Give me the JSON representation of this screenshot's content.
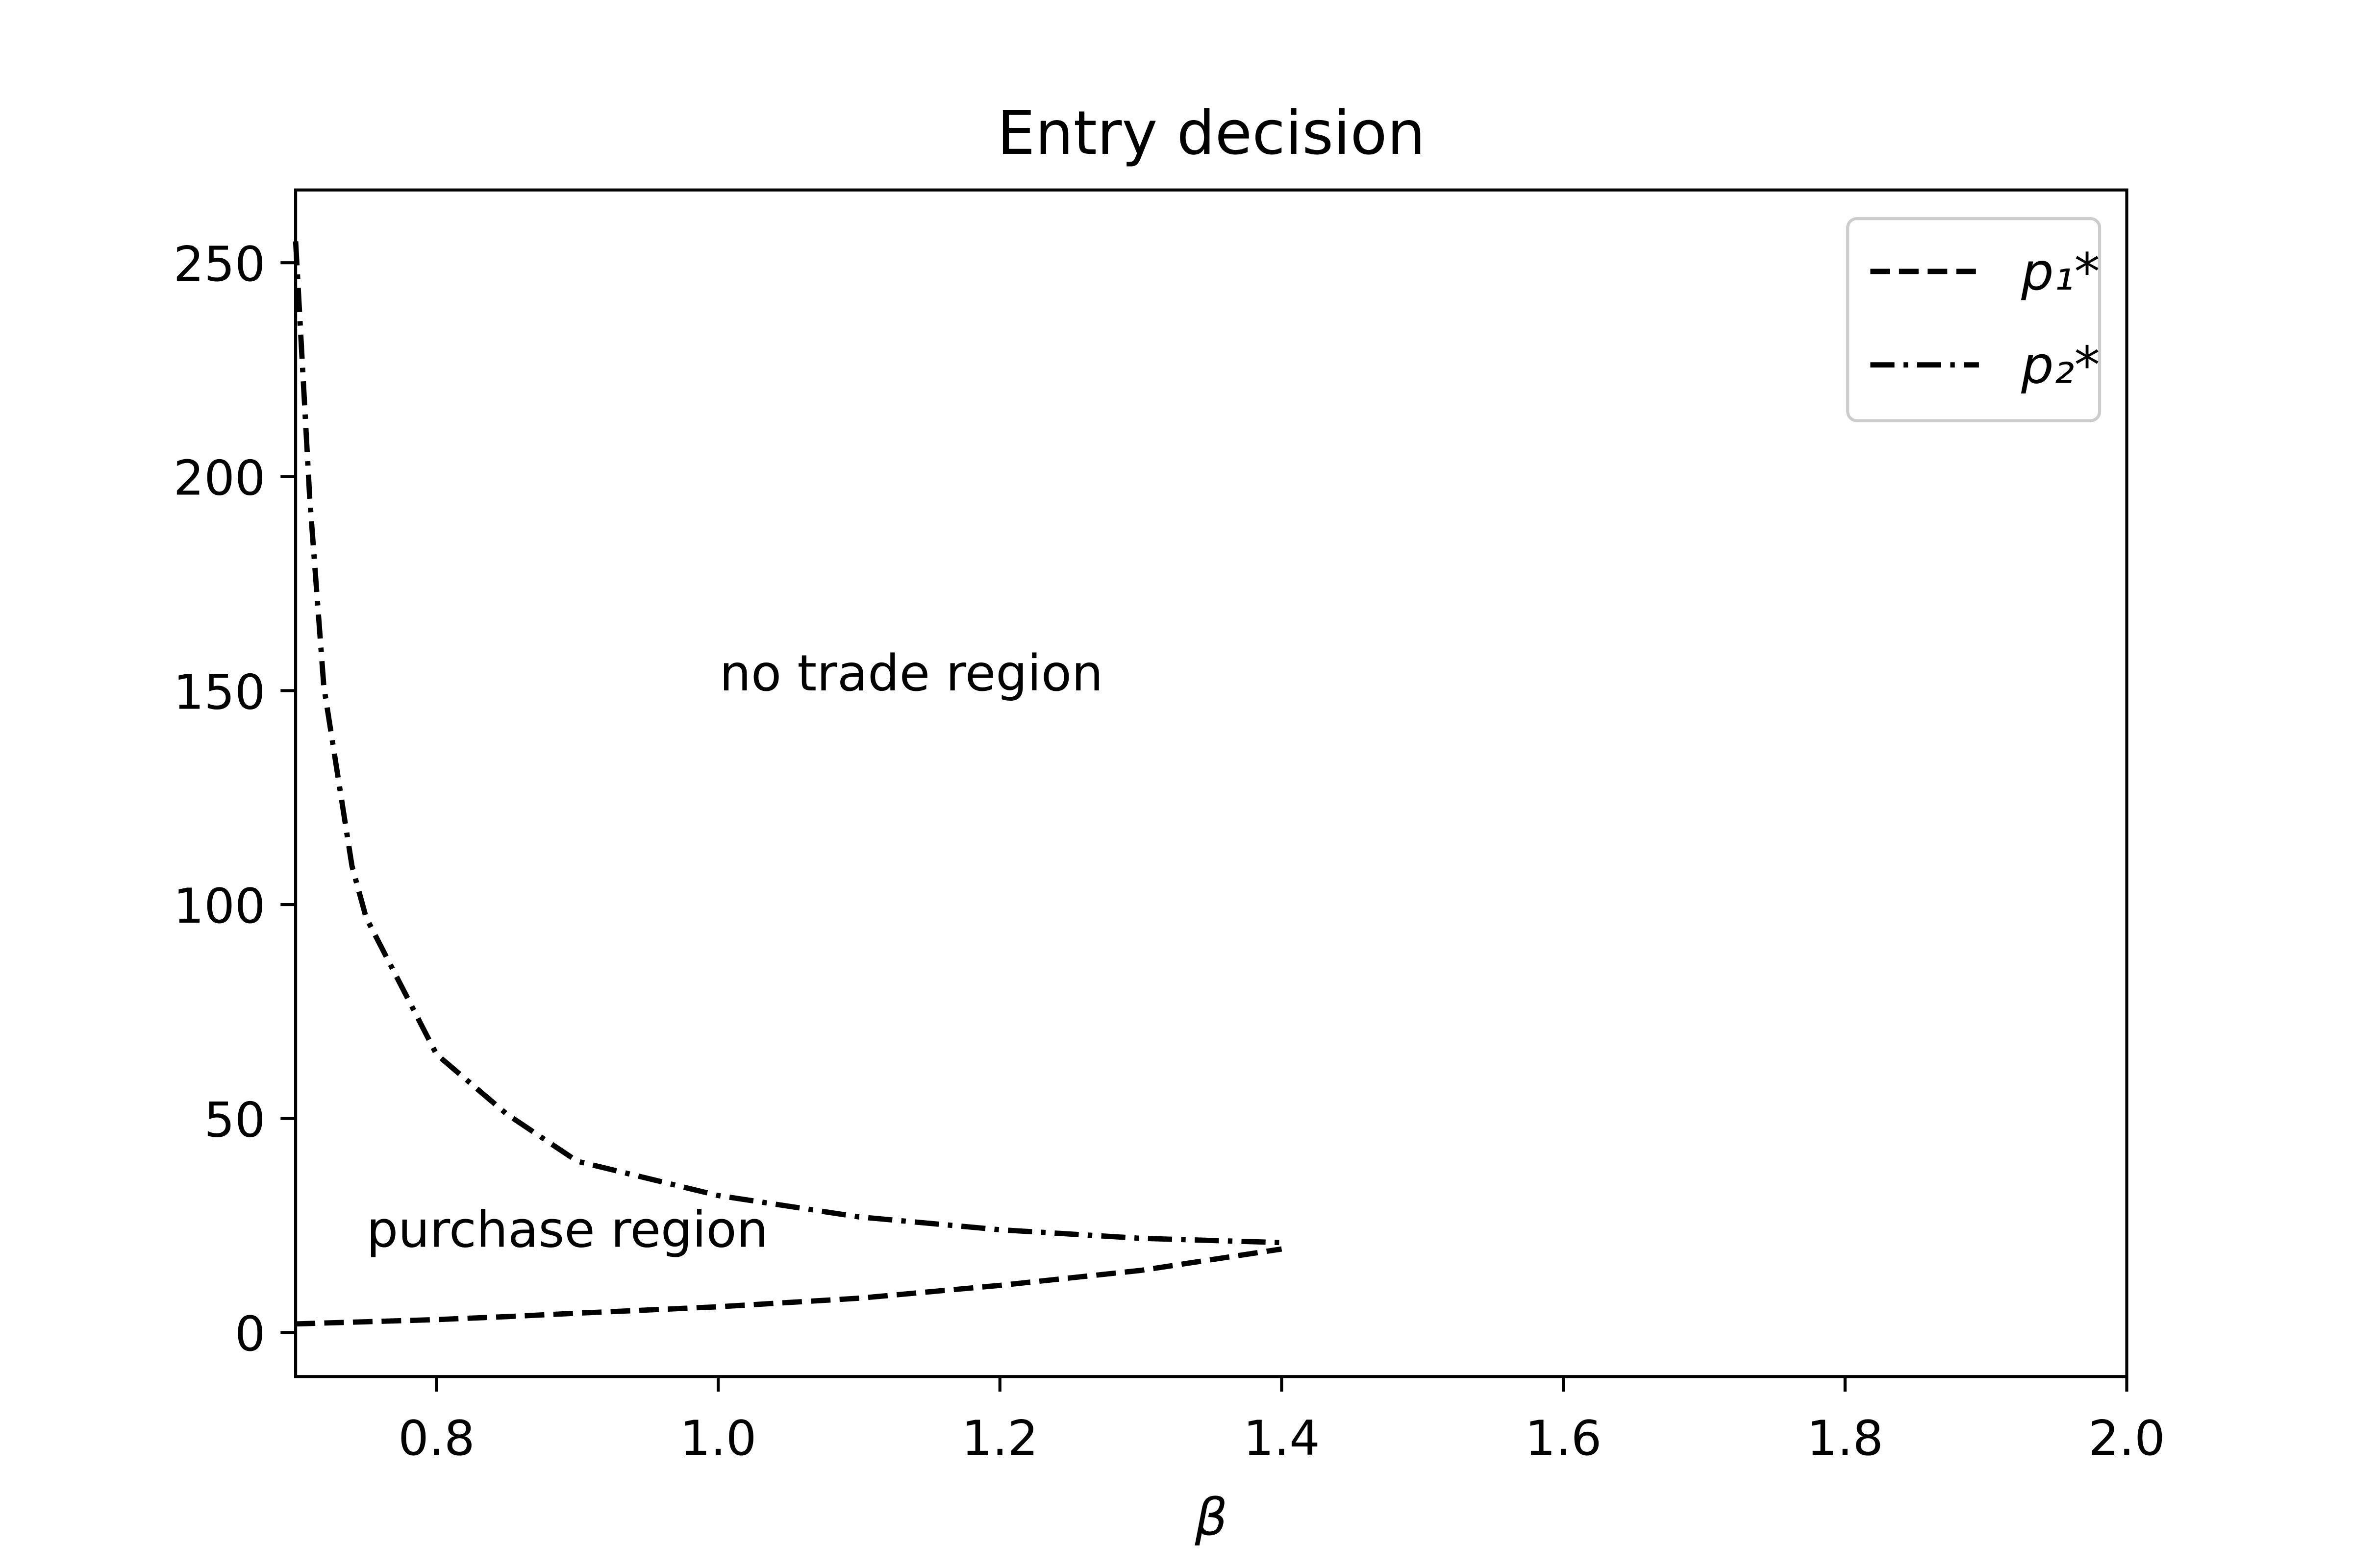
{
  "chart_data": {
    "type": "line",
    "title": "Entry decision",
    "x_label": "β",
    "x": [
      0.7,
      0.71,
      0.72,
      0.74,
      0.75,
      0.8,
      0.85,
      0.9,
      1.0,
      1.1,
      1.2,
      1.3,
      1.4
    ],
    "series": [
      {
        "name": "p₁*",
        "color": "#000000",
        "dash": "dashed",
        "values": [
          2,
          2.1,
          2.2,
          2.4,
          2.5,
          3,
          3.7,
          4.5,
          6,
          8,
          11,
          14.5,
          19.5
        ]
      },
      {
        "name": "p₂*",
        "color": "#000000",
        "dash": "dashdot",
        "values": [
          255,
          195,
          151,
          109,
          97,
          65,
          51,
          40,
          32,
          27,
          24,
          22,
          21
        ]
      }
    ],
    "annotations": [
      "no trade region",
      "purchase region"
    ],
    "xlim": [
      0.7,
      2.0
    ],
    "ylim": [
      -10.3,
      267
    ],
    "xticks": [
      0.8,
      {
        "value": 1.0,
        "label": "1.0"
      },
      1.2,
      1.4,
      1.6,
      1.8,
      {
        "value": 2.0,
        "label": "2.0"
      }
    ],
    "yticks": [
      0,
      50,
      100,
      150,
      200,
      250
    ],
    "legend": "upper right",
    "grid": false
  }
}
